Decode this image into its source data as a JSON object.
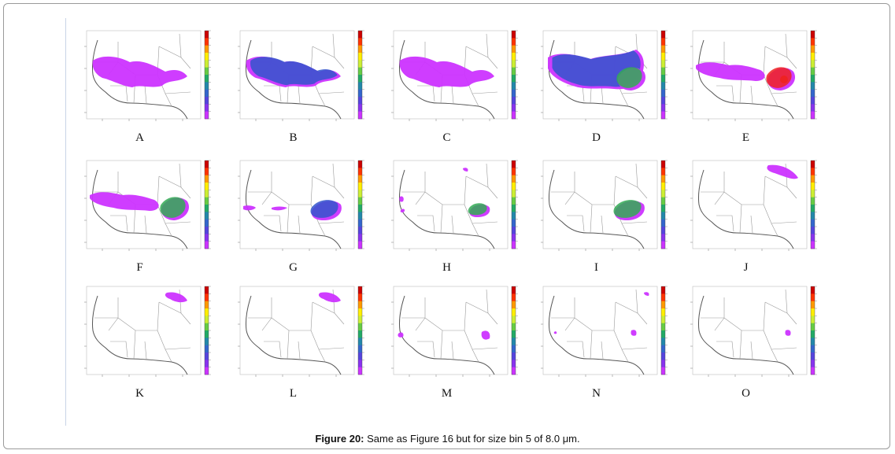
{
  "figure": {
    "caption_label": "Figure 20:",
    "caption_text": " Same as Figure 16 but for size bin 5 of 8.0 μm.",
    "panels": [
      {
        "letter": "A",
        "blobs": [
          {
            "shape": "band-wide",
            "level": 0.15
          }
        ]
      },
      {
        "letter": "B",
        "blobs": [
          {
            "shape": "band-wide",
            "level": 0.25
          }
        ]
      },
      {
        "letter": "C",
        "blobs": [
          {
            "shape": "band-wide",
            "level": 0.2
          }
        ]
      },
      {
        "letter": "D",
        "blobs": [
          {
            "shape": "band-full",
            "level": 0.45
          },
          {
            "shape": "east-core",
            "level": 0.5
          }
        ]
      },
      {
        "letter": "E",
        "blobs": [
          {
            "shape": "band-partial",
            "level": 0.2
          },
          {
            "shape": "east-core",
            "level": 0.95
          }
        ]
      },
      {
        "letter": "F",
        "blobs": [
          {
            "shape": "band-partial",
            "level": 0.2
          },
          {
            "shape": "east-core",
            "level": 0.7
          }
        ]
      },
      {
        "letter": "G",
        "blobs": [
          {
            "shape": "east-oval",
            "level": 0.3
          },
          {
            "shape": "west-streak",
            "level": 0.05
          }
        ]
      },
      {
        "letter": "H",
        "blobs": [
          {
            "shape": "east-oval-small",
            "level": 0.5
          },
          {
            "shape": "coast-specks",
            "level": 0.05
          }
        ]
      },
      {
        "letter": "I",
        "blobs": [
          {
            "shape": "east-oval",
            "level": 0.55
          }
        ]
      },
      {
        "letter": "J",
        "blobs": [
          {
            "shape": "northeast-plume",
            "level": 0.15
          }
        ]
      },
      {
        "letter": "K",
        "blobs": [
          {
            "shape": "northeast-small",
            "level": 0.1
          }
        ]
      },
      {
        "letter": "L",
        "blobs": [
          {
            "shape": "northeast-small",
            "level": 0.1
          }
        ]
      },
      {
        "letter": "M",
        "blobs": [
          {
            "shape": "spot-pair",
            "level": 0.05
          }
        ]
      },
      {
        "letter": "N",
        "blobs": [
          {
            "shape": "spot-tiny",
            "level": 0.05
          }
        ]
      },
      {
        "letter": "O",
        "blobs": [
          {
            "shape": "spot-single",
            "level": 0.05
          }
        ]
      }
    ],
    "colors": {
      "low": "#cc33ff",
      "mid": "#3355cc",
      "high": "#33aa55",
      "peak": "#ffdd22",
      "max": "#ee2222",
      "coast": "#555555",
      "border": "#9a9a9a"
    }
  }
}
